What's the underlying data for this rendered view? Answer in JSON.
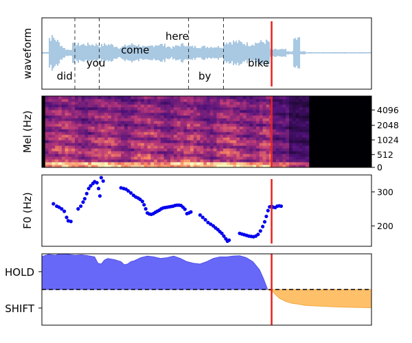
{
  "chart_data": [
    {
      "type": "line",
      "ylabel": "waveform",
      "xlim": [
        0,
        1
      ],
      "words": [
        {
          "text": "did",
          "x": 0.045,
          "level": "low"
        },
        {
          "text": "you",
          "x": 0.135,
          "level": "mid"
        },
        {
          "text": "come",
          "x": 0.24,
          "level": "midhigh"
        },
        {
          "text": "here",
          "x": 0.375,
          "level": "high"
        },
        {
          "text": "by",
          "x": 0.475,
          "level": "low"
        },
        {
          "text": "bike",
          "x": 0.625,
          "level": "mid"
        }
      ],
      "word_boundaries": [
        0.1,
        0.174,
        0.445,
        0.551
      ],
      "cursor_x": 0.697,
      "colors": {
        "wave": "#a9c8e2",
        "cursor": "#e8201c"
      }
    },
    {
      "type": "heatmap",
      "ylabel": "Mel (Hz)",
      "yticks": [
        "0",
        "512",
        "1024",
        "2048",
        "4096"
      ],
      "cursor_x": 0.697,
      "colormap": "magma"
    },
    {
      "type": "scatter",
      "ylabel": "F0 (Hz)",
      "yticks": [
        200,
        300
      ],
      "ylim": [
        140,
        350
      ],
      "color": "#0000ee",
      "cursor_x": 0.697,
      "points": [
        [
          0.035,
          265
        ],
        [
          0.045,
          258
        ],
        [
          0.052,
          255
        ],
        [
          0.06,
          250
        ],
        [
          0.068,
          243
        ],
        [
          0.075,
          225
        ],
        [
          0.08,
          215
        ],
        [
          0.088,
          213
        ],
        [
          0.11,
          250
        ],
        [
          0.118,
          258
        ],
        [
          0.125,
          270
        ],
        [
          0.13,
          280
        ],
        [
          0.136,
          295
        ],
        [
          0.142,
          310
        ],
        [
          0.148,
          318
        ],
        [
          0.155,
          325
        ],
        [
          0.16,
          330
        ],
        [
          0.167,
          327
        ],
        [
          0.172,
          310
        ],
        [
          0.176,
          288
        ],
        [
          0.18,
          342
        ],
        [
          0.186,
          332
        ],
        [
          0.24,
          312
        ],
        [
          0.248,
          310
        ],
        [
          0.255,
          308
        ],
        [
          0.262,
          303
        ],
        [
          0.27,
          297
        ],
        [
          0.278,
          290
        ],
        [
          0.285,
          285
        ],
        [
          0.292,
          282
        ],
        [
          0.298,
          278
        ],
        [
          0.305,
          272
        ],
        [
          0.31,
          262
        ],
        [
          0.315,
          250
        ],
        [
          0.32,
          238
        ],
        [
          0.326,
          235
        ],
        [
          0.332,
          234
        ],
        [
          0.338,
          236
        ],
        [
          0.344,
          240
        ],
        [
          0.35,
          243
        ],
        [
          0.356,
          246
        ],
        [
          0.362,
          250
        ],
        [
          0.368,
          253
        ],
        [
          0.374,
          254
        ],
        [
          0.38,
          255
        ],
        [
          0.386,
          256
        ],
        [
          0.392,
          257
        ],
        [
          0.398,
          258
        ],
        [
          0.404,
          260
        ],
        [
          0.41,
          261
        ],
        [
          0.416,
          261
        ],
        [
          0.422,
          260
        ],
        [
          0.428,
          255
        ],
        [
          0.434,
          249
        ],
        [
          0.44,
          236
        ],
        [
          0.446,
          238
        ],
        [
          0.452,
          241
        ],
        [
          0.48,
          232
        ],
        [
          0.488,
          225
        ],
        [
          0.496,
          218
        ],
        [
          0.504,
          210
        ],
        [
          0.512,
          205
        ],
        [
          0.52,
          200
        ],
        [
          0.527,
          194
        ],
        [
          0.534,
          189
        ],
        [
          0.54,
          183
        ],
        [
          0.546,
          178
        ],
        [
          0.552,
          170
        ],
        [
          0.558,
          162
        ],
        [
          0.563,
          155
        ],
        [
          0.568,
          158
        ],
        [
          0.6,
          178
        ],
        [
          0.607,
          176
        ],
        [
          0.614,
          174
        ],
        [
          0.621,
          172
        ],
        [
          0.628,
          170
        ],
        [
          0.635,
          169
        ],
        [
          0.642,
          168
        ],
        [
          0.649,
          170
        ],
        [
          0.656,
          175
        ],
        [
          0.663,
          185
        ],
        [
          0.67,
          198
        ],
        [
          0.676,
          212
        ],
        [
          0.681,
          228
        ],
        [
          0.686,
          245
        ],
        [
          0.691,
          256
        ],
        [
          0.697,
          258
        ],
        [
          0.702,
          255
        ],
        [
          0.708,
          254
        ],
        [
          0.714,
          258
        ],
        [
          0.72,
          259
        ],
        [
          0.726,
          258
        ]
      ]
    },
    {
      "type": "area",
      "yticks": [
        "HOLD",
        "SHIFT"
      ],
      "cursor_x": 0.697,
      "colors": {
        "hold": "#6868f8",
        "shift": "#ffc06a",
        "cursor": "#e8201c"
      },
      "hold_series": [
        [
          0,
          0.83
        ],
        [
          0.02,
          0.88
        ],
        [
          0.04,
          0.86
        ],
        [
          0.06,
          0.9
        ],
        [
          0.08,
          0.88
        ],
        [
          0.1,
          0.86
        ],
        [
          0.12,
          0.87
        ],
        [
          0.14,
          0.85
        ],
        [
          0.16,
          0.82
        ],
        [
          0.17,
          0.66
        ],
        [
          0.18,
          0.64
        ],
        [
          0.19,
          0.74
        ],
        [
          0.2,
          0.78
        ],
        [
          0.22,
          0.75
        ],
        [
          0.24,
          0.7
        ],
        [
          0.25,
          0.62
        ],
        [
          0.26,
          0.64
        ],
        [
          0.27,
          0.7
        ],
        [
          0.28,
          0.72
        ],
        [
          0.3,
          0.8
        ],
        [
          0.32,
          0.84
        ],
        [
          0.34,
          0.82
        ],
        [
          0.36,
          0.78
        ],
        [
          0.38,
          0.8
        ],
        [
          0.4,
          0.84
        ],
        [
          0.42,
          0.78
        ],
        [
          0.44,
          0.7
        ],
        [
          0.46,
          0.66
        ],
        [
          0.48,
          0.64
        ],
        [
          0.5,
          0.7
        ],
        [
          0.52,
          0.78
        ],
        [
          0.54,
          0.82
        ],
        [
          0.56,
          0.82
        ],
        [
          0.58,
          0.84
        ],
        [
          0.6,
          0.85
        ],
        [
          0.62,
          0.8
        ],
        [
          0.64,
          0.7
        ],
        [
          0.66,
          0.5
        ],
        [
          0.672,
          0.28
        ],
        [
          0.684,
          0.02
        ]
      ],
      "shift_series": [
        [
          0.7,
          -0.05
        ],
        [
          0.72,
          -0.22
        ],
        [
          0.74,
          -0.3
        ],
        [
          0.76,
          -0.35
        ],
        [
          0.78,
          -0.37
        ],
        [
          0.8,
          -0.4
        ],
        [
          0.85,
          -0.42
        ],
        [
          0.9,
          -0.44
        ],
        [
          0.95,
          -0.45
        ],
        [
          1.0,
          -0.46
        ]
      ]
    }
  ]
}
